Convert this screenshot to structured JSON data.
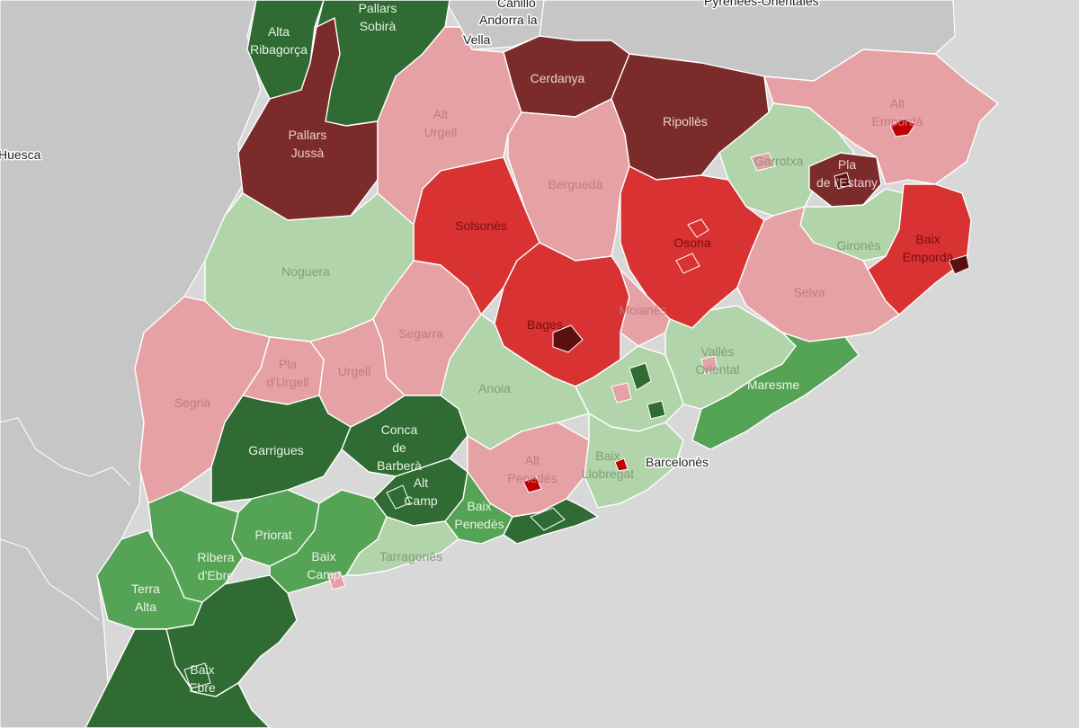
{
  "colors": {
    "sea": "#d8d8d8",
    "land_neighbor": "#c6c6c6",
    "dark_green": "#2f6b33",
    "medium_green": "#55a355",
    "light_green": "#b2d4aa",
    "light_red": "#e6a1a4",
    "red": "#d83232",
    "dark_red": "#7c2b2b"
  },
  "basemap_labels": [
    {
      "id": "canillo",
      "text": "Canillo"
    },
    {
      "id": "andorra",
      "lines": [
        "Andorra la",
        "Vella"
      ]
    },
    {
      "id": "pyrenees",
      "text": "Pyrénées-Orientales"
    },
    {
      "id": "huesca",
      "text": "Huesca"
    },
    {
      "id": "barcelones",
      "text": "Barcelonès"
    }
  ],
  "comarques": [
    {
      "id": "alta-ribagorca",
      "lines": [
        "Alta",
        "Ribagorça"
      ],
      "fill": "dark_green"
    },
    {
      "id": "pallars-sobira",
      "lines": [
        "Pallars",
        "Sobirà"
      ],
      "fill": "dark_green"
    },
    {
      "id": "pallars-jussa",
      "lines": [
        "Pallars",
        "Jussà"
      ],
      "fill": "dark_red"
    },
    {
      "id": "alt-urgell",
      "lines": [
        "Alt",
        "Urgell"
      ],
      "fill": "light_red"
    },
    {
      "id": "cerdanya",
      "lines": [
        "Cerdanya"
      ],
      "fill": "dark_red"
    },
    {
      "id": "ripolles",
      "lines": [
        "Ripollès"
      ],
      "fill": "dark_red"
    },
    {
      "id": "alt-emporda",
      "lines": [
        "Alt",
        "Empordà"
      ],
      "fill": "light_red"
    },
    {
      "id": "garrotxa",
      "lines": [
        "Garrotxa"
      ],
      "fill": "light_green"
    },
    {
      "id": "pla-estany",
      "lines": [
        "Pla",
        "de l'Estany"
      ],
      "fill": "dark_red"
    },
    {
      "id": "gironès",
      "lines": [
        "Gironès"
      ],
      "fill": "light_green"
    },
    {
      "id": "baix-emporda",
      "lines": [
        "Baix",
        "Empordà"
      ],
      "fill": "red"
    },
    {
      "id": "bergueda",
      "lines": [
        "Berguedà"
      ],
      "fill": "light_red"
    },
    {
      "id": "solsones",
      "lines": [
        "Solsonès"
      ],
      "fill": "red"
    },
    {
      "id": "osona",
      "lines": [
        "Osona"
      ],
      "fill": "red"
    },
    {
      "id": "selva",
      "lines": [
        "Selva"
      ],
      "fill": "light_red"
    },
    {
      "id": "noguera",
      "lines": [
        "Noguera"
      ],
      "fill": "light_green"
    },
    {
      "id": "segarra",
      "lines": [
        "Segarra"
      ],
      "fill": "light_red"
    },
    {
      "id": "bages",
      "lines": [
        "Bages"
      ],
      "fill": "red"
    },
    {
      "id": "moianes",
      "lines": [
        "Moianès"
      ],
      "fill": "light_red"
    },
    {
      "id": "valles-oriental",
      "lines": [
        "Vallès",
        "Oriental"
      ],
      "fill": "light_green"
    },
    {
      "id": "maresme",
      "lines": [
        "Maresme"
      ],
      "fill": "medium_green"
    },
    {
      "id": "segria",
      "lines": [
        "Segrià"
      ],
      "fill": "light_red"
    },
    {
      "id": "pla-urgell",
      "lines": [
        "Pla",
        "d'Urgell"
      ],
      "fill": "light_red"
    },
    {
      "id": "urgell",
      "lines": [
        "Urgell"
      ],
      "fill": "light_red"
    },
    {
      "id": "anoia",
      "lines": [
        "Anoia"
      ],
      "fill": "light_green"
    },
    {
      "id": "valles-occidental",
      "lines": [],
      "fill": "light_green"
    },
    {
      "id": "garrigues",
      "lines": [
        "Garrigues"
      ],
      "fill": "dark_green"
    },
    {
      "id": "conca-barbera",
      "lines": [
        "Conca",
        "de",
        "Barberà"
      ],
      "fill": "dark_green"
    },
    {
      "id": "alt-camp",
      "lines": [
        "Alt",
        "Camp"
      ],
      "fill": "dark_green"
    },
    {
      "id": "alt-penedes",
      "lines": [
        "Alt",
        "Penedès"
      ],
      "fill": "light_red"
    },
    {
      "id": "baix-llobregat",
      "lines": [
        "Baix",
        "Llobregat"
      ],
      "fill": "light_green"
    },
    {
      "id": "baix-penedes",
      "lines": [
        "Baix",
        "Penedès"
      ],
      "fill": "medium_green"
    },
    {
      "id": "garraf",
      "lines": [],
      "fill": "dark_green"
    },
    {
      "id": "priorat",
      "lines": [
        "Priorat"
      ],
      "fill": "medium_green"
    },
    {
      "id": "ribera-ebre",
      "lines": [
        "Ribera",
        "d'Ebre"
      ],
      "fill": "medium_green"
    },
    {
      "id": "baix-camp",
      "lines": [
        "Baix",
        "Camp"
      ],
      "fill": "medium_green"
    },
    {
      "id": "tarragones",
      "lines": [
        "Tarragonès"
      ],
      "fill": "light_green"
    },
    {
      "id": "terra-alta",
      "lines": [
        "Terra",
        "Alta"
      ],
      "fill": "medium_green"
    },
    {
      "id": "baix-ebre",
      "lines": [
        "Baix",
        "Ebre"
      ],
      "fill": "dark_green"
    },
    {
      "id": "montsia",
      "lines": [],
      "fill": "dark_green"
    }
  ]
}
